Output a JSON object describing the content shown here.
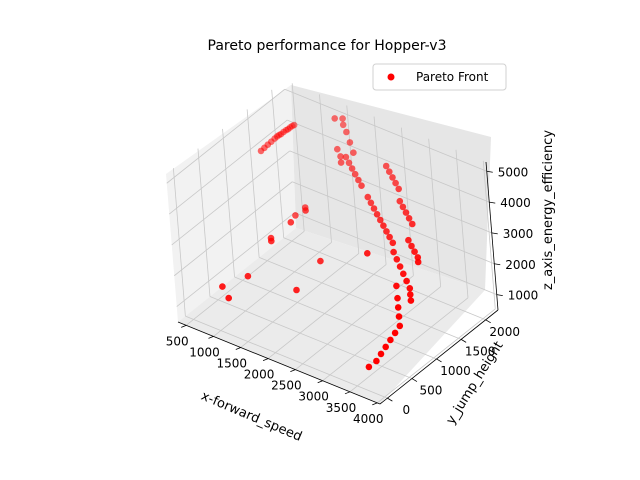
{
  "chart_data": {
    "type": "scatter",
    "projection": "3d",
    "title": "Pareto performance for Hopper-v3",
    "xlabel": "x-forward_speed",
    "ylabel": "y_jump_height",
    "zlabel": "z_axis_energy_efficiency",
    "xlim": [
      350,
      4050
    ],
    "ylim": [
      -150,
      2250
    ],
    "zlim": [
      500,
      5300
    ],
    "x_ticks": [
      500,
      1000,
      1500,
      2000,
      2500,
      3000,
      3500,
      4000
    ],
    "y_ticks": [
      0,
      500,
      1000,
      1500,
      2000
    ],
    "z_ticks": [
      1000,
      2000,
      3000,
      4000,
      5000
    ],
    "x_tick_labels": [
      "500",
      "1000",
      "1500",
      "2000",
      "2500",
      "3000",
      "3500",
      "4000"
    ],
    "y_tick_labels": [
      "0",
      "500",
      "1000",
      "1500",
      "2000"
    ],
    "z_tick_labels": [
      "1000",
      "2000",
      "3000",
      "4000",
      "5000"
    ],
    "grid": true,
    "legend_position": "top-right",
    "series": [
      {
        "name": "Pareto Front",
        "color": "#ff0000",
        "marker": "circle",
        "points": [
          [
            400,
            1650,
            3800
          ],
          [
            420,
            1700,
            3850
          ],
          [
            440,
            1750,
            3900
          ],
          [
            460,
            1800,
            3950
          ],
          [
            480,
            1850,
            4000
          ],
          [
            500,
            1880,
            4050
          ],
          [
            520,
            1900,
            4080
          ],
          [
            540,
            1920,
            4100
          ],
          [
            560,
            1950,
            4150
          ],
          [
            580,
            1980,
            4180
          ],
          [
            600,
            2000,
            4200
          ],
          [
            620,
            2020,
            4250
          ],
          [
            640,
            2040,
            4280
          ],
          [
            660,
            2060,
            4300
          ],
          [
            700,
            400,
            1200
          ],
          [
            900,
            300,
            1100
          ],
          [
            1000,
            600,
            1500
          ],
          [
            1200,
            900,
            2400
          ],
          [
            1400,
            1100,
            2900
          ],
          [
            1500,
            1300,
            3100
          ],
          [
            1100,
            1000,
            2300
          ],
          [
            1800,
            700,
            1500
          ],
          [
            2000,
            1000,
            2200
          ],
          [
            1200,
            1400,
            2600
          ],
          [
            1300,
            1500,
            2800
          ],
          [
            1500,
            2000,
            5200
          ],
          [
            1600,
            2050,
            5000
          ],
          [
            1550,
            2100,
            5100
          ],
          [
            1700,
            2000,
            4900
          ],
          [
            1800,
            1950,
            4700
          ],
          [
            1900,
            1900,
            4500
          ],
          [
            1600,
            1900,
            4400
          ],
          [
            1700,
            1850,
            4300
          ],
          [
            1750,
            1800,
            4200
          ],
          [
            1800,
            1850,
            4350
          ],
          [
            1900,
            1800,
            4300
          ],
          [
            2000,
            1750,
            4250
          ],
          [
            2100,
            1700,
            4200
          ],
          [
            2200,
            1650,
            4150
          ],
          [
            2300,
            1600,
            4100
          ],
          [
            2500,
            1500,
            4000
          ],
          [
            2600,
            1450,
            3950
          ],
          [
            2700,
            1400,
            3900
          ],
          [
            2800,
            1350,
            3850
          ],
          [
            2900,
            1300,
            3800
          ],
          [
            3000,
            1250,
            3750
          ],
          [
            3100,
            1200,
            3700
          ],
          [
            3200,
            1150,
            3650
          ],
          [
            3300,
            1100,
            3600
          ],
          [
            3400,
            1000,
            3500
          ],
          [
            3500,
            950,
            3400
          ],
          [
            3600,
            900,
            3300
          ],
          [
            3700,
            850,
            3200
          ],
          [
            3800,
            800,
            3100
          ],
          [
            3900,
            750,
            3000
          ],
          [
            3950,
            700,
            2900
          ],
          [
            4000,
            650,
            2800
          ],
          [
            3600,
            1100,
            3900
          ],
          [
            3700,
            1050,
            3850
          ],
          [
            3800,
            1000,
            3800
          ],
          [
            3900,
            950,
            3750
          ],
          [
            3950,
            900,
            3700
          ],
          [
            3700,
            700,
            3000
          ],
          [
            3800,
            600,
            2800
          ],
          [
            3850,
            550,
            2600
          ],
          [
            3900,
            500,
            2400
          ],
          [
            3950,
            450,
            2200
          ],
          [
            3900,
            400,
            2000
          ],
          [
            3850,
            350,
            1800
          ],
          [
            3800,
            300,
            1600
          ],
          [
            3750,
            250,
            1400
          ],
          [
            3700,
            200,
            1200
          ],
          [
            3600,
            150,
            1000
          ],
          [
            3000,
            900,
            3300
          ],
          [
            3100,
            1500,
            4300
          ],
          [
            3200,
            1450,
            4250
          ],
          [
            3300,
            1400,
            4200
          ],
          [
            3400,
            1350,
            4150
          ],
          [
            3500,
            1300,
            4100
          ],
          [
            2600,
            1800,
            4700
          ],
          [
            2700,
            1750,
            4650
          ],
          [
            2800,
            1700,
            4600
          ],
          [
            2900,
            1650,
            4550
          ],
          [
            3000,
            1600,
            4500
          ]
        ]
      }
    ]
  }
}
